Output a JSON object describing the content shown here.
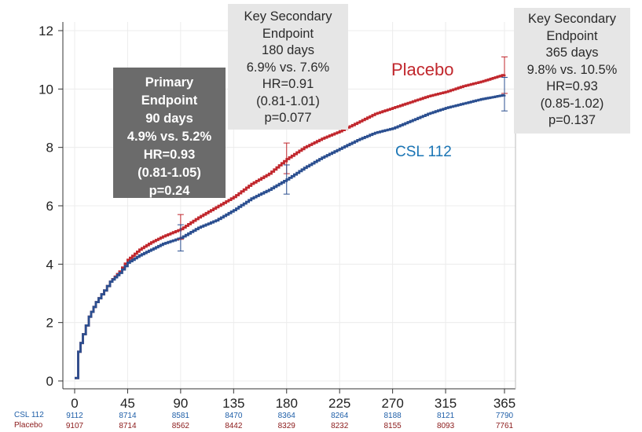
{
  "chart_data": {
    "type": "line",
    "xlabel": "",
    "ylabel": "",
    "x_ticks": [
      0,
      45,
      90,
      135,
      180,
      225,
      270,
      315,
      365
    ],
    "y_ticks": [
      0,
      2,
      4,
      6,
      8,
      10,
      12
    ],
    "xlim": [
      0,
      365
    ],
    "ylim": [
      0,
      12
    ],
    "grid": true,
    "series": [
      {
        "name": "Placebo",
        "color": "#c1272d",
        "x": [
          0,
          3,
          7,
          12,
          18,
          25,
          30,
          38,
          45,
          55,
          65,
          75,
          90,
          105,
          120,
          135,
          150,
          165,
          180,
          195,
          210,
          225,
          240,
          255,
          270,
          285,
          300,
          315,
          330,
          345,
          365
        ],
        "y": [
          0.1,
          1.0,
          1.6,
          2.2,
          2.7,
          3.1,
          3.4,
          3.75,
          4.15,
          4.5,
          4.75,
          4.95,
          5.2,
          5.6,
          5.95,
          6.3,
          6.75,
          7.1,
          7.6,
          8.0,
          8.3,
          8.55,
          8.85,
          9.15,
          9.35,
          9.55,
          9.75,
          9.9,
          10.1,
          10.25,
          10.5
        ]
      },
      {
        "name": "CSL 112",
        "color": "#2b4f90",
        "x": [
          0,
          3,
          7,
          12,
          18,
          25,
          30,
          38,
          45,
          55,
          65,
          75,
          90,
          105,
          120,
          135,
          150,
          165,
          180,
          195,
          210,
          225,
          240,
          255,
          270,
          285,
          300,
          315,
          330,
          345,
          365
        ],
        "y": [
          0.1,
          1.0,
          1.6,
          2.2,
          2.7,
          3.1,
          3.4,
          3.7,
          4.05,
          4.3,
          4.5,
          4.7,
          4.9,
          5.25,
          5.5,
          5.85,
          6.25,
          6.55,
          6.9,
          7.3,
          7.65,
          7.95,
          8.25,
          8.5,
          8.65,
          8.9,
          9.15,
          9.35,
          9.5,
          9.65,
          9.8
        ]
      }
    ],
    "error_bars": [
      {
        "series": "Placebo",
        "x": 90,
        "y": 5.2,
        "low": 4.85,
        "high": 5.7
      },
      {
        "series": "CSL 112",
        "x": 90,
        "y": 4.9,
        "low": 4.45,
        "high": 5.35
      },
      {
        "series": "Placebo",
        "x": 180,
        "y": 7.6,
        "low": 7.1,
        "high": 8.15
      },
      {
        "series": "CSL 112",
        "x": 180,
        "y": 6.9,
        "low": 6.4,
        "high": 7.4
      },
      {
        "series": "Placebo",
        "x": 365,
        "y": 10.5,
        "low": 9.85,
        "high": 11.1
      },
      {
        "series": "CSL 112",
        "x": 365,
        "y": 9.8,
        "low": 9.25,
        "high": 10.4
      }
    ],
    "series_labels": {
      "placebo": "Placebo",
      "csl": "CSL 112"
    },
    "annotations": {
      "primary": [
        "Primary",
        "Endpoint",
        "90 days",
        "4.9% vs. 5.2%",
        "HR=0.93",
        "(0.81-1.05)",
        "p=0.24"
      ],
      "secondary_180": [
        "Key Secondary",
        "Endpoint",
        "180 days",
        "6.9% vs. 7.6%",
        "HR=0.91",
        "(0.81-1.01)",
        "p=0.077"
      ],
      "secondary_365": [
        "Key Secondary",
        "Endpoint",
        "365 days",
        "9.8% vs. 10.5%",
        "HR=0.93",
        "(0.85-1.02)",
        "p=0.137"
      ]
    },
    "at_risk": {
      "csl_label": "CSL 112",
      "placebo_label": "Placebo",
      "csl": [
        "9112",
        "8714",
        "8581",
        "8470",
        "8364",
        "8264",
        "8188",
        "8121",
        "7790"
      ],
      "placebo": [
        "9107",
        "8714",
        "8562",
        "8442",
        "8329",
        "8232",
        "8155",
        "8093",
        "7761"
      ]
    }
  }
}
